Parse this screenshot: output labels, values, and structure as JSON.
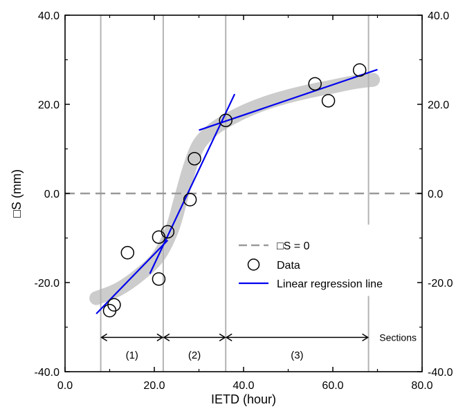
{
  "chart_data": {
    "type": "scatter",
    "xlabel": "IETD (hour)",
    "ylabel": "□S (mm)",
    "xlim": [
      0,
      80
    ],
    "ylim": [
      -40,
      40
    ],
    "x_ticks": [
      {
        "value": 0,
        "label": "0.0"
      },
      {
        "value": 20,
        "label": "20.0"
      },
      {
        "value": 40,
        "label": "40.0"
      },
      {
        "value": 60,
        "label": "60.0"
      },
      {
        "value": 80,
        "label": "80.0"
      }
    ],
    "y_ticks": [
      {
        "value": -40,
        "label": "-40.0"
      },
      {
        "value": -20,
        "label": "-20.0"
      },
      {
        "value": 0,
        "label": "0.0"
      },
      {
        "value": 20,
        "label": "20.0"
      },
      {
        "value": 40,
        "label": "40.0"
      }
    ],
    "grid": false,
    "legend_position": "center-right",
    "legend": [
      {
        "key": "zero",
        "label": "□S = 0"
      },
      {
        "key": "data",
        "label": "Data"
      },
      {
        "key": "reg",
        "label": "Linear regression line"
      }
    ],
    "data_points": [
      {
        "x": 10,
        "y": -26.3
      },
      {
        "x": 11,
        "y": -25.0
      },
      {
        "x": 14,
        "y": -13.3
      },
      {
        "x": 21,
        "y": -9.8
      },
      {
        "x": 21,
        "y": -19.2
      },
      {
        "x": 23,
        "y": -8.6
      },
      {
        "x": 28,
        "y": -1.4
      },
      {
        "x": 29,
        "y": 7.8
      },
      {
        "x": 36,
        "y": 16.4
      },
      {
        "x": 56,
        "y": 24.6
      },
      {
        "x": 59,
        "y": 20.8
      },
      {
        "x": 66,
        "y": 27.7
      }
    ],
    "regression_lines": [
      {
        "x": [
          7,
          23
        ],
        "y": [
          -27.0,
          -10.5
        ]
      },
      {
        "x": [
          19,
          38
        ],
        "y": [
          -18.0,
          22.3
        ]
      },
      {
        "x": [
          30,
          70
        ],
        "y": [
          14.2,
          27.8
        ]
      }
    ],
    "trend_band": [
      {
        "x": 7,
        "y": -23.5
      },
      {
        "x": 12,
        "y": -21.5
      },
      {
        "x": 17,
        "y": -18.0
      },
      {
        "x": 21,
        "y": -14.0
      },
      {
        "x": 24,
        "y": -8.0
      },
      {
        "x": 26,
        "y": -1.0
      },
      {
        "x": 28,
        "y": 6.0
      },
      {
        "x": 30,
        "y": 11.0
      },
      {
        "x": 33,
        "y": 14.2
      },
      {
        "x": 36,
        "y": 16.2
      },
      {
        "x": 40,
        "y": 18.3
      },
      {
        "x": 45,
        "y": 20.3
      },
      {
        "x": 50,
        "y": 21.8
      },
      {
        "x": 55,
        "y": 23.0
      },
      {
        "x": 60,
        "y": 24.0
      },
      {
        "x": 65,
        "y": 25.0
      },
      {
        "x": 69,
        "y": 25.5
      }
    ],
    "zero_line_y": 0,
    "section_boundaries": [
      8,
      22,
      36,
      68
    ],
    "sections": [
      {
        "label": "(1)",
        "from": 8,
        "to": 22
      },
      {
        "label": "(2)",
        "from": 22,
        "to": 36
      },
      {
        "label": "(3)",
        "from": 36,
        "to": 68
      }
    ],
    "sections_label": "Sections",
    "colors": {
      "regression": "#0000ee",
      "trend_band": "#cccccc",
      "zero_line": "#999999",
      "section_line": "#b3b3b3",
      "data_marker": "#000000"
    }
  }
}
